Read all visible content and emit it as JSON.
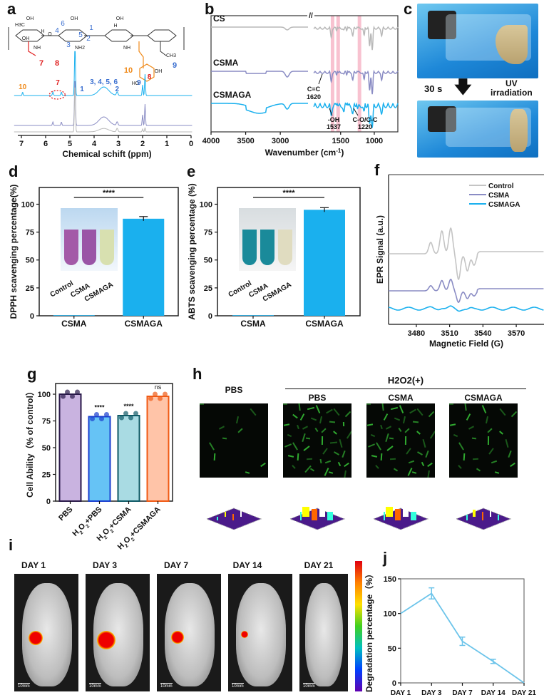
{
  "panel_labels": {
    "a": "a",
    "b": "b",
    "c": "c",
    "d": "d",
    "e": "e",
    "f": "f",
    "g": "g",
    "h": "h",
    "i": "i",
    "j": "j"
  },
  "colors": {
    "cs": "#b8b8b8",
    "csma": "#8a8cc4",
    "csmaga": "#1ab0ee",
    "red": "#e02020",
    "orange": "#f08a1a",
    "blue": "#3a6fd0"
  },
  "panel_a": {
    "structure_labels": [
      "OH",
      "H3C",
      "OH",
      "H",
      "NH",
      "O",
      "NH2",
      "OH",
      "H",
      "NH",
      "OH",
      "OH",
      "HO",
      "CH3"
    ],
    "numbers_blue": [
      "6",
      "4",
      "5",
      "3",
      "1",
      "2",
      "9"
    ],
    "numbers_red": [
      "7",
      "8"
    ],
    "number_orange": "10",
    "peak_labels": [
      {
        "text": "10",
        "color": "orange"
      },
      {
        "text": "7",
        "color": "red"
      },
      {
        "text": "1",
        "color": "blue"
      },
      {
        "text": "3, 4, 5, 6",
        "color": "blue"
      },
      {
        "text": "2",
        "color": "blue"
      },
      {
        "text": "9",
        "color": "blue"
      },
      {
        "text": "8",
        "color": "red"
      }
    ]
  },
  "panel_c": {
    "arrow_label": "30 s",
    "uv_label": "UV\nirradiation",
    "uv_line1": "UV",
    "uv_line2": "irradiation"
  },
  "panel_h": {
    "group_label": "H2O2(+)",
    "columns": [
      "PBS",
      "PBS",
      "CSMA",
      "CSMAGA"
    ]
  },
  "panel_i": {
    "days": [
      "DAY 1",
      "DAY 3",
      "DAY 7",
      "DAY 14",
      "DAY 21"
    ],
    "scale_bar": "10mm",
    "colorbar": "rainbow"
  },
  "chart_data": [
    {
      "id": "a",
      "type": "line",
      "title": "",
      "xlabel": "Chemical schift (ppm)",
      "xlim": [
        7.3,
        0
      ],
      "xticks": [
        "7",
        "6",
        "5",
        "4",
        "3",
        "2",
        "1",
        "0"
      ],
      "series": [
        {
          "color": "#1ab0ee"
        },
        {
          "color": "#8a8cc4"
        },
        {
          "color": "#b8b8b8"
        }
      ],
      "annotation": "dotted circle around peak 7"
    },
    {
      "id": "b",
      "type": "line",
      "xlabel": "Wavenumber (cm",
      "xlabel_sup": "-1",
      "xlabel_end": ")",
      "xticks": [
        "4000",
        "3500",
        "3000",
        "1500",
        "1000"
      ],
      "axis_break": "//",
      "series": [
        {
          "name": "CS",
          "color": "#b8b8b8"
        },
        {
          "name": "CSMA",
          "color": "#8a8cc4"
        },
        {
          "name": "CSMAGA",
          "color": "#1ab0ee"
        }
      ],
      "highlight_bands": [
        1620,
        1537,
        1220
      ],
      "annotations": [
        {
          "l1": "C=C",
          "l2": "1620"
        },
        {
          "l1": "-OH",
          "l2": "1537"
        },
        {
          "l1": "C-O/C-C",
          "l2": "1220"
        }
      ]
    },
    {
      "id": "d",
      "type": "bar",
      "ylabel": "DPPH scavenging percentage(%)",
      "categories": [
        "CSMA",
        "CSMAGA"
      ],
      "values": [
        0.5,
        87
      ],
      "ylim": [
        0,
        115
      ],
      "yticks": [
        "0",
        "25",
        "50",
        "75",
        "100"
      ],
      "significance": "****",
      "bar_color": "#1ab0ee",
      "inset_labels": [
        "Control",
        "CSMA",
        "CSMAGA"
      ]
    },
    {
      "id": "e",
      "type": "bar",
      "ylabel": "ABTS scavenging percentage (%)",
      "categories": [
        "CSMA",
        "CSMAGA"
      ],
      "values": [
        0.5,
        95
      ],
      "ylim": [
        0,
        115
      ],
      "yticks": [
        "0",
        "25",
        "50",
        "75",
        "100"
      ],
      "significance": "****",
      "bar_color": "#1ab0ee",
      "inset_labels": [
        "Control",
        "CSMA",
        "CSMAGA"
      ]
    },
    {
      "id": "f",
      "type": "line",
      "ylabel": "EPR Signal (a.u.)",
      "xlabel": "Magnetic Field (G)",
      "xlim": [
        3455,
        3595
      ],
      "xticks": [
        "3480",
        "3510",
        "3540",
        "3570"
      ],
      "legend": "top-right",
      "series": [
        {
          "name": "Control",
          "color": "#c4c4c4"
        },
        {
          "name": "CSMA",
          "color": "#8a8cc4"
        },
        {
          "name": "CSMAGA",
          "color": "#1ab0ee"
        }
      ]
    },
    {
      "id": "g",
      "type": "bar",
      "ylabel": "Cell Ability（% of control）",
      "categories": [
        "PBS",
        "H2O2+PBS",
        "H2O2+CSMA",
        "H2O2+CSMAGA"
      ],
      "values": [
        100,
        79,
        80,
        98
      ],
      "ylim": [
        0,
        110
      ],
      "yticks": [
        "0",
        "25",
        "50",
        "75",
        "100"
      ],
      "significance": [
        "",
        "****",
        "****",
        "ns"
      ],
      "fill_colors": [
        "#c9b3e0",
        "#66c3f5",
        "#a9dbe3",
        "#ffc4a8"
      ],
      "edge_colors": [
        "#2a1a4a",
        "#1a3fcf",
        "#0f5a66",
        "#f05a14"
      ]
    },
    {
      "id": "j",
      "type": "line",
      "ylabel": "Degradation percentage（%）",
      "categories": [
        "DAY 1",
        "DAY 3",
        "DAY 7",
        "DAY 14",
        "DAY 21"
      ],
      "values": [
        100,
        129,
        60,
        31,
        0
      ],
      "errors": [
        0,
        8,
        6,
        3,
        0
      ],
      "ylim": [
        0,
        150
      ],
      "yticks": [
        "0",
        "50",
        "100",
        "150"
      ],
      "color": "#6cc4ea"
    }
  ]
}
